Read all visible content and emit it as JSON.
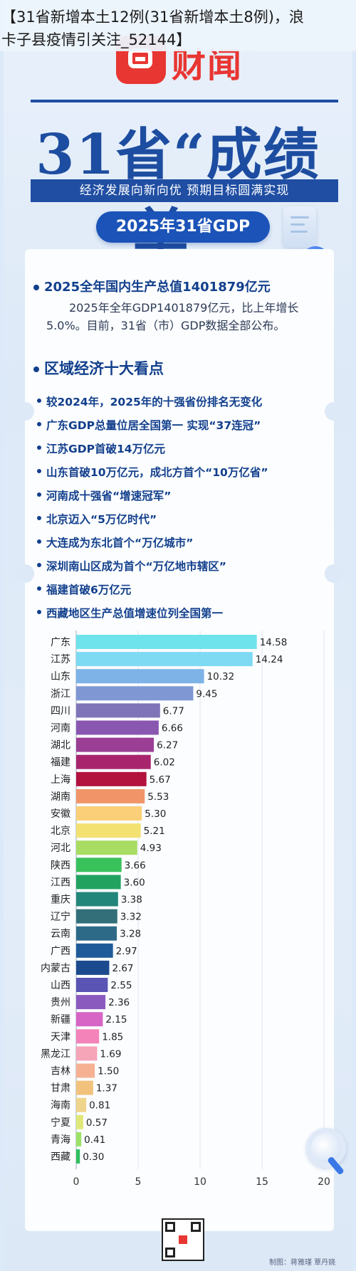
{
  "header": {
    "line1": "【31省新增本土12例(31省新增本土8例)，浪",
    "line2": "卡子县疫情引关注_52144】"
  },
  "brand": {
    "name": "财闻"
  },
  "hero": {
    "title": "31省“成绩单”",
    "slogan": "经济发展向新向优  预期目标圆满实现",
    "badge": "2025年31省GDP"
  },
  "summary": {
    "heading": "2025全年国内生产总值1401879亿元",
    "text": "2025年全年GDP1401879亿元，比上年增长5.0%。目前，31省（市）GDP数据全部公布。"
  },
  "highlights": {
    "heading": "区域经济十大看点",
    "items": [
      "较2024年，2025年的十强省份排名无变化",
      "广东GDP总量位居全国第一  实现“37连冠”",
      "江苏GDP首破14万亿元",
      "山东首破10万亿元，成北方首个“10万亿省”",
      "河南成十强省“增速冠军”",
      "北京迈入“5万亿时代”",
      "大连成为东北首个“万亿城市”",
      "深圳南山区成为首个“万亿地市辖区”",
      "福建首破6万亿元",
      "西藏地区生产总值增速位列全国第一"
    ]
  },
  "chart_data": {
    "type": "bar",
    "orientation": "horizontal",
    "categories": [
      "广东",
      "江苏",
      "山东",
      "浙江",
      "四川",
      "河南",
      "湖北",
      "福建",
      "上海",
      "湖南",
      "安徽",
      "北京",
      "河北",
      "陕西",
      "江西",
      "重庆",
      "辽宁",
      "云南",
      "广西",
      "内蒙古",
      "山西",
      "贵州",
      "新疆",
      "天津",
      "黑龙江",
      "吉林",
      "甘肃",
      "海南",
      "宁夏",
      "青海",
      "西藏"
    ],
    "values": [
      14.58,
      14.24,
      10.32,
      9.45,
      6.77,
      6.66,
      6.27,
      6.02,
      5.67,
      5.53,
      5.3,
      5.21,
      4.93,
      3.66,
      3.6,
      3.38,
      3.32,
      3.28,
      2.97,
      2.67,
      2.55,
      2.36,
      2.15,
      1.85,
      1.69,
      1.5,
      1.37,
      0.81,
      0.57,
      0.41,
      0.3
    ],
    "value_labels": [
      "14.58",
      "14.24",
      "10.32",
      "9.45",
      "6.77",
      "6.66",
      "6.27",
      "6.02",
      "5.67",
      "5.53",
      "5.30",
      "5.21",
      "4.93",
      "3.66",
      "3.60",
      "3.38",
      "3.32",
      "3.28",
      "2.97",
      "2.67",
      "2.55",
      "2.36",
      "2.15",
      "1.85",
      "1.69",
      "1.50",
      "1.37",
      "0.81",
      "0.57",
      "0.41",
      "0.30"
    ],
    "colors": [
      "#6fe3ec",
      "#7ddaf2",
      "#7db3e6",
      "#7f97d3",
      "#7f74b8",
      "#8a57b0",
      "#9b3f94",
      "#a8246d",
      "#b3123e",
      "#f19569",
      "#fbcf78",
      "#f3e172",
      "#a9dc63",
      "#39c15c",
      "#21a35f",
      "#22877a",
      "#336f78",
      "#2d6a88",
      "#1f5b99",
      "#1b4b8e",
      "#5a54b5",
      "#8b5abf",
      "#d765c6",
      "#f383b9",
      "#f6a4b7",
      "#f6b192",
      "#f2c27c",
      "#f0d48c",
      "#dfe877",
      "#9be266",
      "#2fbf5f"
    ],
    "xticks": [
      0,
      5,
      10,
      15,
      20
    ],
    "xlim": [
      0,
      20
    ],
    "grid": true
  },
  "footer": {
    "credit": "制图：蒋雅瑾  覃丹娆"
  }
}
